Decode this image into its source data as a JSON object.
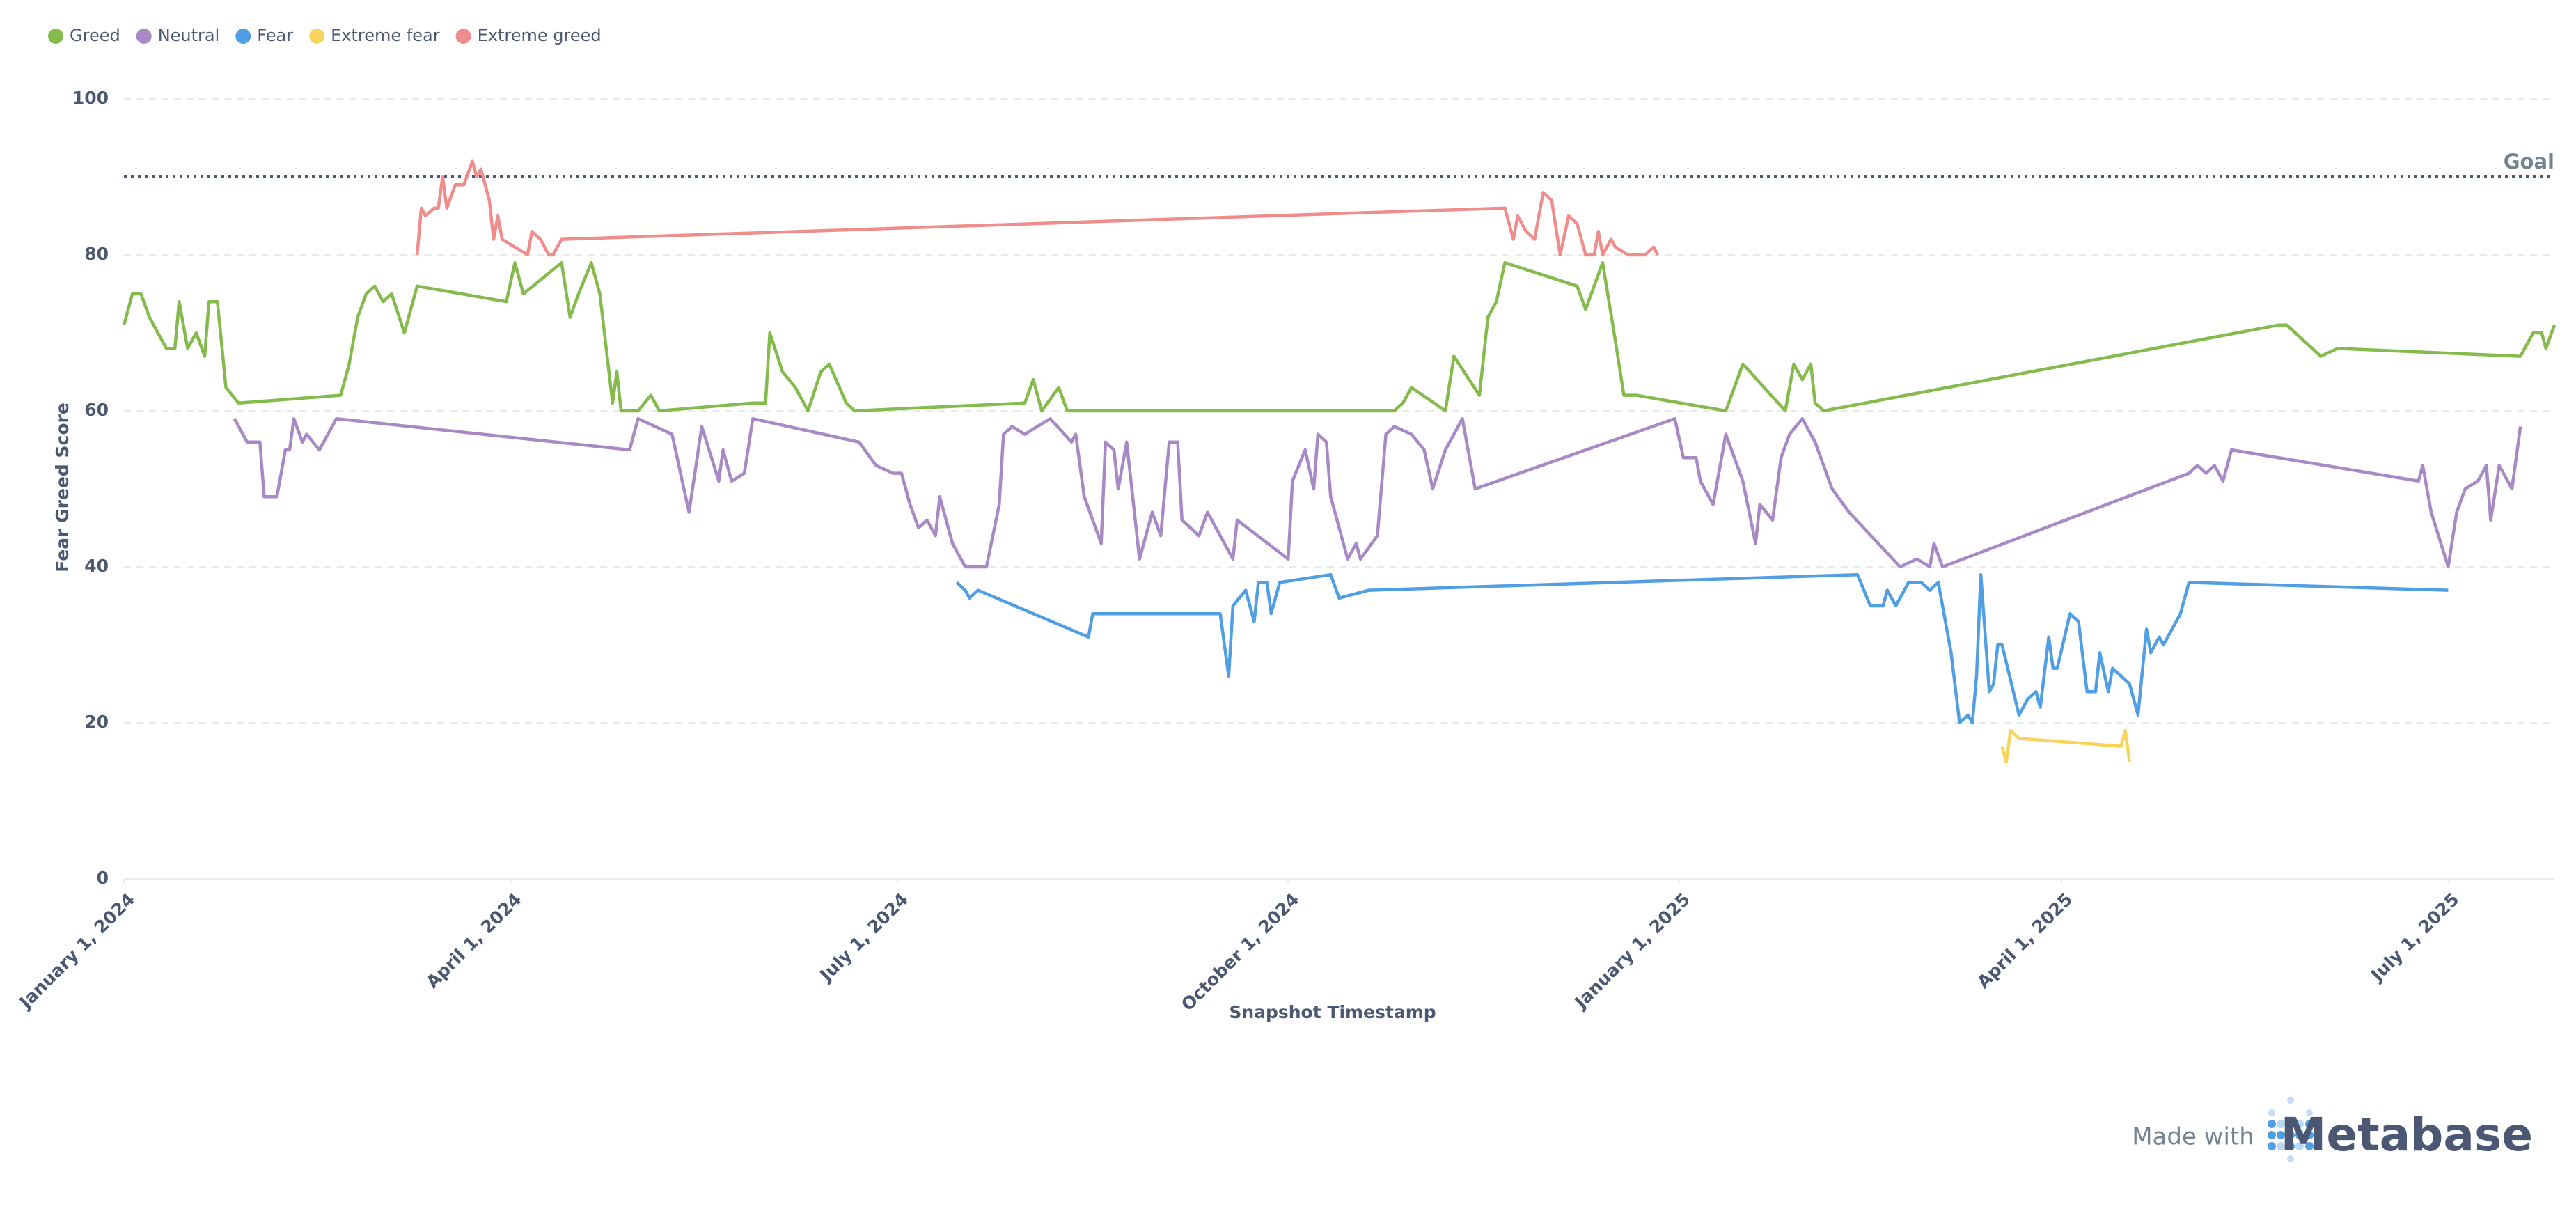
{
  "chart_data": {
    "type": "line",
    "y_label": "Fear Greed Score",
    "x_label": "Snapshot Timestamp",
    "xlim": [
      "2024-01-01",
      "2025-07-26"
    ],
    "xticks": [
      {
        "value": "2024-01-01",
        "label": "January 1, 2024"
      },
      {
        "value": "2024-04-01",
        "label": "April 1, 2024"
      },
      {
        "value": "2024-07-01",
        "label": "July 1, 2024"
      },
      {
        "value": "2024-10-01",
        "label": "October 1, 2024"
      },
      {
        "value": "2025-01-01",
        "label": "January 1, 2025"
      },
      {
        "value": "2025-04-01",
        "label": "April 1, 2025"
      },
      {
        "value": "2025-07-01",
        "label": "July 1, 2025"
      }
    ],
    "ylim": [
      0,
      100
    ],
    "yticks": [
      0,
      20,
      40,
      60,
      80,
      100
    ],
    "grid": true,
    "goal": {
      "value": 90,
      "label": "Goal"
    },
    "series": [
      {
        "name": "Greed",
        "color": "#84bb4c",
        "x": [
          "2024-01-01",
          "2024-01-03",
          "2024-01-05",
          "2024-01-07",
          "2024-01-09",
          "2024-01-11",
          "2024-01-13",
          "2024-01-14",
          "2024-01-16",
          "2024-01-18",
          "2024-01-20",
          "2024-01-21",
          "2024-01-23",
          "2024-01-25",
          "2024-01-28",
          "2024-02-21",
          "2024-02-23",
          "2024-02-25",
          "2024-02-27",
          "2024-02-29",
          "2024-03-02",
          "2024-03-04",
          "2024-03-07",
          "2024-03-10",
          "2024-03-31",
          "2024-04-02",
          "2024-04-04",
          "2024-04-13",
          "2024-04-15",
          "2024-04-17",
          "2024-04-20",
          "2024-04-22",
          "2024-04-25",
          "2024-04-26",
          "2024-04-27",
          "2024-05-01",
          "2024-05-04",
          "2024-05-06",
          "2024-05-28",
          "2024-05-31",
          "2024-06-01",
          "2024-06-04",
          "2024-06-07",
          "2024-06-10",
          "2024-06-13",
          "2024-06-15",
          "2024-06-19",
          "2024-06-21",
          "2024-07-31",
          "2024-08-02",
          "2024-08-04",
          "2024-08-08",
          "2024-08-10",
          "2024-10-26",
          "2024-10-28",
          "2024-10-30",
          "2024-11-07",
          "2024-11-09",
          "2024-11-15",
          "2024-11-17",
          "2024-11-19",
          "2024-11-21",
          "2024-12-08",
          "2024-12-10",
          "2024-12-14",
          "2024-12-17",
          "2024-12-19",
          "2024-12-22",
          "2025-01-12",
          "2025-01-16",
          "2025-01-26",
          "2025-01-28",
          "2025-01-30",
          "2025-02-01",
          "2025-02-02",
          "2025-02-04",
          "2025-05-22",
          "2025-05-24",
          "2025-06-01",
          "2025-06-05",
          "2025-07-18",
          "2025-07-21",
          "2025-07-23",
          "2025-07-24",
          "2025-07-26"
        ],
        "values": [
          71,
          75,
          75,
          72,
          70,
          68,
          68,
          74,
          68,
          70,
          67,
          74,
          74,
          63,
          61,
          62,
          66,
          72,
          75,
          76,
          74,
          75,
          70,
          76,
          74,
          79,
          75,
          79,
          72,
          75,
          79,
          75,
          61,
          65,
          60,
          60,
          62,
          60,
          61,
          61,
          70,
          65,
          63,
          60,
          65,
          66,
          61,
          60,
          61,
          64,
          60,
          63,
          60,
          60,
          61,
          63,
          60,
          67,
          62,
          72,
          74,
          79,
          76,
          73,
          79,
          69,
          62,
          62,
          60,
          66,
          60,
          66,
          64,
          66,
          61,
          60,
          71,
          71,
          67,
          68,
          67,
          70,
          70,
          68,
          71
        ]
      },
      {
        "name": "Neutral",
        "color": "#a989c5",
        "x": [
          "2024-01-27",
          "2024-01-30",
          "2024-02-02",
          "2024-02-03",
          "2024-02-06",
          "2024-02-08",
          "2024-02-09",
          "2024-02-10",
          "2024-02-12",
          "2024-02-13",
          "2024-02-16",
          "2024-02-20",
          "2024-04-29",
          "2024-05-01",
          "2024-05-09",
          "2024-05-13",
          "2024-05-16",
          "2024-05-20",
          "2024-05-21",
          "2024-05-23",
          "2024-05-26",
          "2024-05-28",
          "2024-06-22",
          "2024-06-26",
          "2024-06-30",
          "2024-07-02",
          "2024-07-04",
          "2024-07-06",
          "2024-07-08",
          "2024-07-10",
          "2024-07-11",
          "2024-07-14",
          "2024-07-17",
          "2024-07-22",
          "2024-07-25",
          "2024-07-26",
          "2024-07-28",
          "2024-07-31",
          "2024-08-06",
          "2024-08-11",
          "2024-08-12",
          "2024-08-14",
          "2024-08-18",
          "2024-08-19",
          "2024-08-21",
          "2024-08-22",
          "2024-08-24",
          "2024-08-27",
          "2024-08-30",
          "2024-09-01",
          "2024-09-03",
          "2024-09-05",
          "2024-09-06",
          "2024-09-10",
          "2024-09-12",
          "2024-09-18",
          "2024-09-19",
          "2024-10-01",
          "2024-10-02",
          "2024-10-05",
          "2024-10-07",
          "2024-10-08",
          "2024-10-10",
          "2024-10-11",
          "2024-10-15",
          "2024-10-17",
          "2024-10-18",
          "2024-10-22",
          "2024-10-24",
          "2024-10-26",
          "2024-10-30",
          "2024-11-02",
          "2024-11-04",
          "2024-11-07",
          "2024-11-11",
          "2024-11-14",
          "2024-12-31",
          "2025-01-02",
          "2025-01-05",
          "2025-01-06",
          "2025-01-09",
          "2025-01-12",
          "2025-01-16",
          "2025-01-19",
          "2025-01-20",
          "2025-01-23",
          "2025-01-25",
          "2025-01-27",
          "2025-01-30",
          "2025-02-02",
          "2025-02-06",
          "2025-02-10",
          "2025-02-22",
          "2025-02-26",
          "2025-03-01",
          "2025-03-02",
          "2025-03-04",
          "2025-05-01",
          "2025-05-03",
          "2025-05-05",
          "2025-05-07",
          "2025-05-09",
          "2025-05-11",
          "2025-06-24",
          "2025-06-25",
          "2025-06-27",
          "2025-07-01",
          "2025-07-03",
          "2025-07-05",
          "2025-07-08",
          "2025-07-10",
          "2025-07-11",
          "2025-07-13",
          "2025-07-16",
          "2025-07-18"
        ],
        "values": [
          59,
          56,
          56,
          49,
          49,
          55,
          55,
          59,
          56,
          57,
          55,
          59,
          55,
          59,
          57,
          47,
          58,
          51,
          55,
          51,
          52,
          59,
          56,
          53,
          52,
          52,
          48,
          45,
          46,
          44,
          49,
          43,
          40,
          40,
          48,
          57,
          58,
          57,
          59,
          56,
          57,
          49,
          43,
          56,
          55,
          50,
          56,
          41,
          47,
          44,
          56,
          56,
          46,
          44,
          47,
          41,
          46,
          41,
          51,
          55,
          50,
          57,
          56,
          49,
          41,
          43,
          41,
          44,
          57,
          58,
          57,
          55,
          50,
          55,
          59,
          50,
          59,
          54,
          54,
          51,
          48,
          57,
          51,
          43,
          48,
          46,
          54,
          57,
          59,
          56,
          50,
          47,
          40,
          41,
          40,
          43,
          40,
          52,
          53,
          52,
          53,
          51,
          55,
          51,
          53,
          47,
          40,
          47,
          50,
          51,
          53,
          46,
          53,
          50,
          58
        ]
      },
      {
        "name": "Fear",
        "color": "#509ee3",
        "x": [
          "2024-07-15",
          "2024-07-17",
          "2024-07-18",
          "2024-07-20",
          "2024-08-15",
          "2024-08-16",
          "2024-09-15",
          "2024-09-17",
          "2024-09-18",
          "2024-09-21",
          "2024-09-23",
          "2024-09-24",
          "2024-09-26",
          "2024-09-27",
          "2024-09-29",
          "2024-10-11",
          "2024-10-13",
          "2024-10-20",
          "2025-02-12",
          "2025-02-15",
          "2025-02-18",
          "2025-02-19",
          "2025-02-21",
          "2025-02-24",
          "2025-02-27",
          "2025-03-01",
          "2025-03-03",
          "2025-03-06",
          "2025-03-08",
          "2025-03-10",
          "2025-03-11",
          "2025-03-12",
          "2025-03-13",
          "2025-03-15",
          "2025-03-16",
          "2025-03-17",
          "2025-03-18",
          "2025-03-22",
          "2025-03-24",
          "2025-03-26",
          "2025-03-27",
          "2025-03-29",
          "2025-03-30",
          "2025-03-31",
          "2025-04-03",
          "2025-04-05",
          "2025-04-07",
          "2025-04-09",
          "2025-04-10",
          "2025-04-12",
          "2025-04-13",
          "2025-04-17",
          "2025-04-19",
          "2025-04-21",
          "2025-04-22",
          "2025-04-24",
          "2025-04-25",
          "2025-04-28",
          "2025-04-29",
          "2025-05-01",
          "2025-07-01"
        ],
        "values": [
          38,
          37,
          36,
          37,
          31,
          34,
          34,
          26,
          35,
          37,
          33,
          38,
          38,
          34,
          38,
          39,
          36,
          37,
          39,
          35,
          35,
          37,
          35,
          38,
          38,
          37,
          38,
          29,
          20,
          21,
          20,
          26,
          39,
          24,
          25,
          30,
          30,
          21,
          23,
          24,
          22,
          31,
          27,
          27,
          34,
          33,
          24,
          24,
          29,
          24,
          27,
          25,
          21,
          32,
          29,
          31,
          30,
          33,
          34,
          38,
          37
        ]
      },
      {
        "name": "Extreme fear",
        "color": "#f9d45c",
        "x": [
          "2025-03-18",
          "2025-03-19",
          "2025-03-20",
          "2025-03-22",
          "2025-04-15",
          "2025-04-16",
          "2025-04-17"
        ],
        "values": [
          17,
          15,
          19,
          18,
          17,
          19,
          15
        ]
      },
      {
        "name": "Extreme greed",
        "color": "#ef8c8c",
        "x": [
          "2024-03-10",
          "2024-03-11",
          "2024-03-12",
          "2024-03-14",
          "2024-03-15",
          "2024-03-16",
          "2024-03-17",
          "2024-03-19",
          "2024-03-21",
          "2024-03-23",
          "2024-03-24",
          "2024-03-25",
          "2024-03-27",
          "2024-03-28",
          "2024-03-29",
          "2024-03-30",
          "2024-04-05",
          "2024-04-06",
          "2024-04-08",
          "2024-04-10",
          "2024-04-11",
          "2024-04-13",
          "2024-11-21",
          "2024-11-23",
          "2024-11-24",
          "2024-11-26",
          "2024-11-28",
          "2024-11-30",
          "2024-12-02",
          "2024-12-04",
          "2024-12-06",
          "2024-12-08",
          "2024-12-10",
          "2024-12-12",
          "2024-12-13",
          "2024-12-14",
          "2024-12-16",
          "2024-12-17",
          "2024-12-20",
          "2024-12-24",
          "2024-12-26",
          "2024-12-27"
        ],
        "values": [
          80,
          86,
          85,
          86,
          86,
          90,
          86,
          89,
          89,
          92,
          90,
          91,
          87,
          82,
          85,
          82,
          80,
          83,
          82,
          80,
          80,
          82,
          86,
          82,
          85,
          83,
          82,
          88,
          87,
          80,
          85,
          84,
          80,
          80,
          83,
          80,
          82,
          81,
          80,
          80,
          81,
          80
        ]
      }
    ]
  },
  "branding": {
    "made_with": "Made with",
    "brand": "Metabase"
  }
}
